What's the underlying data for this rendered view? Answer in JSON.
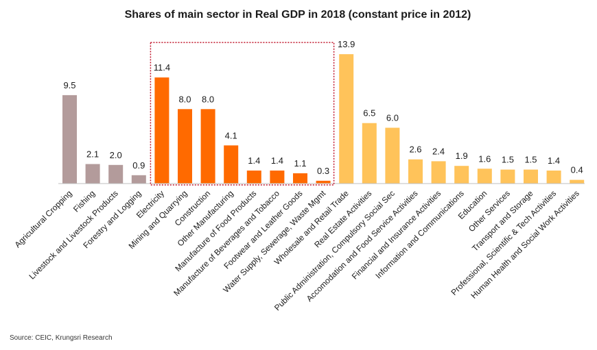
{
  "chart_data": {
    "type": "bar",
    "title": "Shares of main sector in Real GDP in 2018 (constant price in 2012)",
    "categories": [
      "Agricultural Cropping",
      "Fishing",
      "Livestock and Livestock Products",
      "Forestry and Logging",
      "Electricity",
      "Mining and Quarrying",
      "Construction",
      "Other Manufacturing",
      "Manufacture of Food Products",
      "Manufacture of Beverages and Tobacco",
      "Footwear and Leather Goods",
      "Water Supply, Sewerage, Waste Mgmt",
      "Wholesale and Retail Trade",
      "Real Estate Activities",
      "Public Administration, Compulsory Social Sec",
      "Accomodation and Food Service Activities",
      "Financial and Insurance Activities",
      "Information and Communications",
      "Education",
      "Other Services",
      "Transport and Storage",
      "Professional, Scientific & Tech Activities",
      "Human Health and Social Work Activities"
    ],
    "values": [
      9.5,
      2.1,
      2.0,
      0.9,
      11.4,
      8.0,
      8.0,
      4.1,
      1.4,
      1.4,
      1.1,
      0.3,
      13.9,
      6.5,
      6.0,
      2.6,
      2.4,
      1.9,
      1.6,
      1.5,
      1.5,
      1.4,
      0.4
    ],
    "value_labels": [
      "9.5",
      "2.1",
      "2.0",
      "0.9",
      "11.4",
      "8.0",
      "8.0",
      "4.1",
      "1.4",
      "1.4",
      "1.1",
      "0.3",
      "13.9",
      "6.5",
      "6.0",
      "2.6",
      "2.4",
      "1.9",
      "1.6",
      "1.5",
      "1.5",
      "1.4",
      "0.4"
    ],
    "bar_colors": [
      "#b39b9b",
      "#b39b9b",
      "#b39b9b",
      "#b39b9b",
      "#ff6a00",
      "#ff6a00",
      "#ff6a00",
      "#ff6a00",
      "#ff6a00",
      "#ff6a00",
      "#ff6a00",
      "#ff6a00",
      "#ffc35a",
      "#ffc35a",
      "#ffc35a",
      "#ffc35a",
      "#ffc35a",
      "#ffc35a",
      "#ffc35a",
      "#ffc35a",
      "#ffc35a",
      "#ffc35a",
      "#ffc35a"
    ],
    "highlight_box": {
      "covers_categories": [
        4,
        11
      ],
      "style": "dotted",
      "color": "#c0142a"
    },
    "ylim": [
      0,
      14.2
    ],
    "grid": false,
    "legend": "none",
    "xlabel": "",
    "ylabel": ""
  },
  "source": "Source:  CEIC, Krungsri Research"
}
